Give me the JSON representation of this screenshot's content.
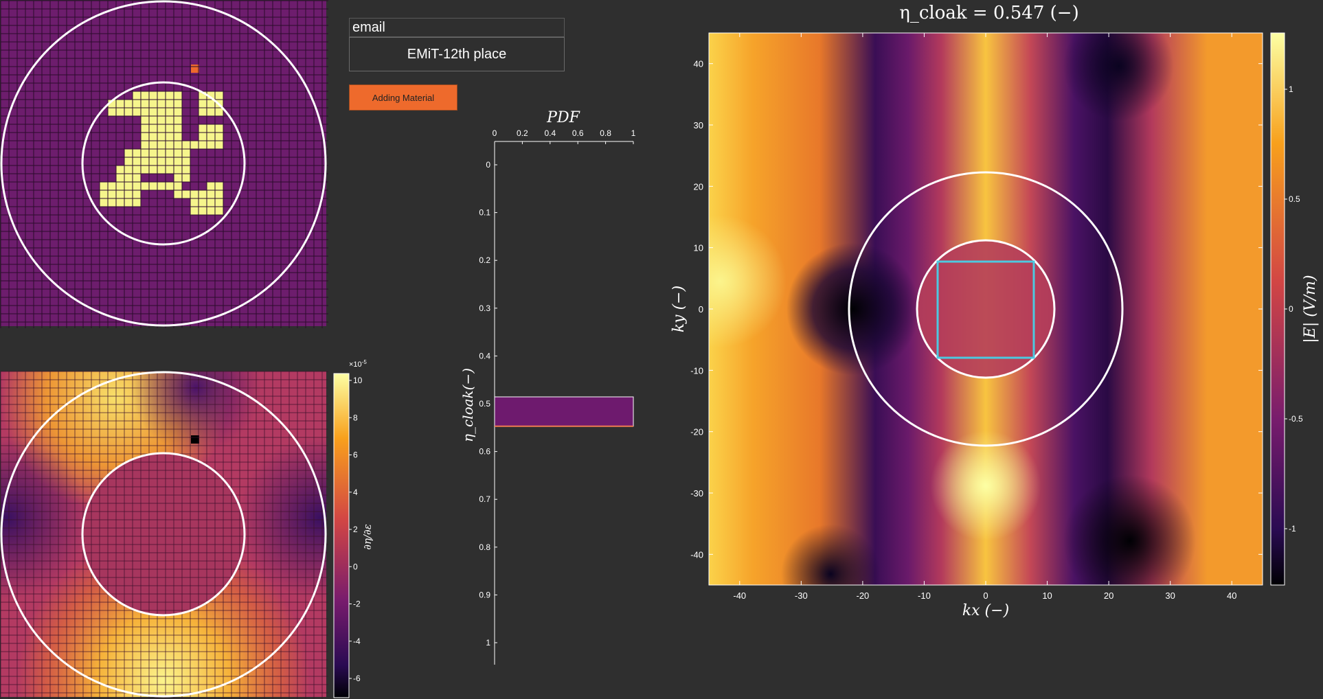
{
  "controls": {
    "email_value": "email",
    "name_display": "EMiT-12th place",
    "adding_material_label": "Adding Material"
  },
  "colors": {
    "background": "#2f2f2f",
    "design_background": "#6d1d6d",
    "design_material": "#f6f58c",
    "cursor_cell": "#ee6a2c",
    "button": "#ee6a2c",
    "cloak_region": "#4cc9e0"
  },
  "gradient_plot": {
    "colorbar_scale_label": "×10",
    "colorbar_scale_exp": "-5",
    "colorbar_label": "∂η/∂ε",
    "colorbar_ticks": [
      "10",
      "8",
      "6",
      "4",
      "2",
      "0",
      "-2",
      "-4",
      "-6"
    ],
    "colormap": "inferno"
  },
  "chart_data": [
    {
      "type": "bar",
      "title": "PDF",
      "orientation": "horizontal",
      "xlim": [
        0,
        1
      ],
      "xticks": [
        "0",
        "0.2",
        "0.4",
        "0.6",
        "0.8",
        "1"
      ],
      "ylabel": "η_cloak(−)",
      "ylim": [
        0,
        1
      ],
      "yticks": [
        "0",
        "0.1",
        "0.2",
        "0.3",
        "0.4",
        "0.5",
        "0.6",
        "0.7",
        "0.8",
        "0.9",
        "1"
      ],
      "bars": [
        {
          "from": 0.5,
          "to": 0.547,
          "value": 1
        }
      ],
      "marker": 0.547
    },
    {
      "type": "heatmap",
      "title": "η_cloak = 0.547 (−)",
      "xlabel": "kx (−)",
      "ylabel": "ky (−)",
      "xlim": [
        -45,
        45
      ],
      "ylim": [
        -45,
        45
      ],
      "xticks": [
        "-40",
        "-30",
        "-20",
        "-10",
        "0",
        "10",
        "20",
        "30",
        "40"
      ],
      "yticks": [
        "40",
        "30",
        "20",
        "10",
        "0",
        "-10",
        "-20",
        "-30",
        "-40"
      ],
      "colorbar_label": "|E| (V/m)",
      "colorbar_ticks": [
        "1",
        "0.5",
        "0",
        "-0.5",
        "-1"
      ],
      "colormap": "inferno"
    }
  ]
}
